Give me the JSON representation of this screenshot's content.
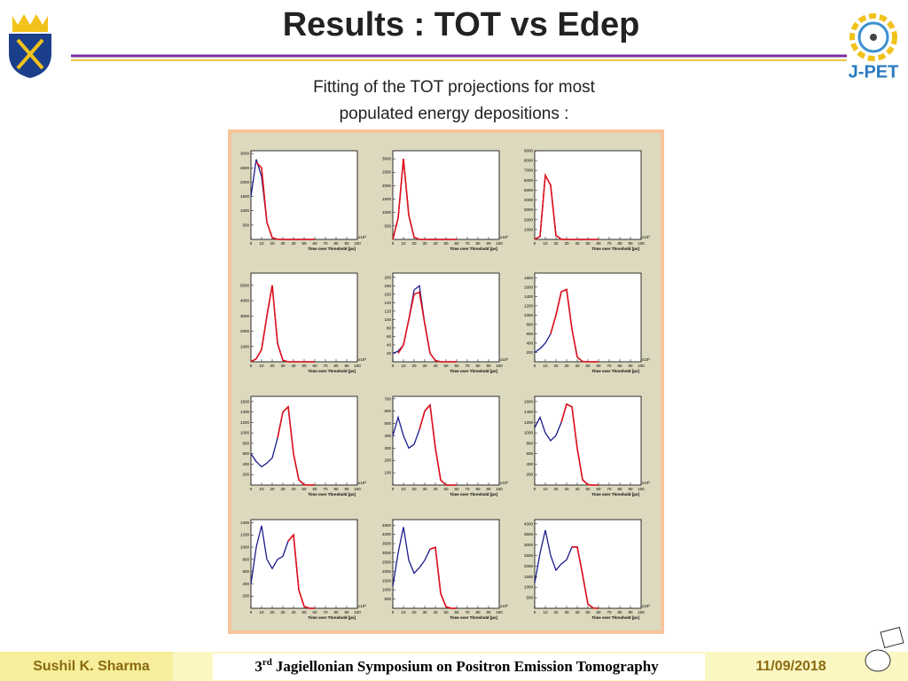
{
  "header": {
    "title": "Results :  TOT vs Edep",
    "subtitle_line1": "Fitting of the TOT projections for most",
    "subtitle_line2": "populated energy depositions :"
  },
  "logo_text": "J-PET",
  "footer": {
    "author": "Sushil K. Sharma",
    "event_number": "3",
    "event_suffix": "rd",
    "event": "Jagiellonian Symposium on Positron Emission Tomography",
    "date": "11/09/2018"
  },
  "chart_data": [
    {
      "type": "line",
      "xlabel": "Time over Threshold [ps]",
      "x_multiplier": "x10³",
      "x": [
        0,
        5,
        10,
        15,
        20,
        25,
        30,
        35,
        40,
        45,
        50,
        55,
        60
      ],
      "xlim": [
        0,
        100
      ],
      "xticks": [
        0,
        10,
        20,
        30,
        40,
        50,
        60,
        70,
        80,
        90,
        100
      ],
      "ylim": [
        0,
        3100
      ],
      "yticks": [
        500,
        1000,
        1500,
        2000,
        2500,
        3000
      ],
      "series": [
        {
          "color": "#1a1a8c",
          "values": [
            1500,
            2800,
            2200,
            600,
            60,
            5,
            0,
            0,
            0,
            0,
            0,
            0,
            0
          ]
        },
        {
          "color": "#e0101a",
          "values": [
            null,
            2700,
            2500,
            600,
            60,
            5,
            0,
            0,
            0,
            0,
            0,
            0,
            0
          ]
        }
      ]
    },
    {
      "type": "line",
      "xlabel": "Time over Threshold [ps]",
      "x_multiplier": "x10³",
      "x": [
        0,
        5,
        10,
        15,
        20,
        25,
        30,
        35,
        40,
        45,
        50,
        55,
        60
      ],
      "xlim": [
        0,
        100
      ],
      "xticks": [
        0,
        10,
        20,
        30,
        40,
        50,
        60,
        70,
        80,
        90,
        100
      ],
      "ylim": [
        0,
        3300
      ],
      "yticks": [
        500,
        1000,
        1500,
        2000,
        2500,
        3000
      ],
      "series": [
        {
          "color": "#1a1a8c",
          "values": [
            0,
            800,
            3000,
            900,
            80,
            0,
            0,
            0,
            0,
            0,
            0,
            0,
            0
          ]
        },
        {
          "color": "#e0101a",
          "values": [
            0,
            800,
            3000,
            900,
            80,
            0,
            0,
            0,
            0,
            0,
            0,
            0,
            0
          ]
        }
      ]
    },
    {
      "type": "line",
      "xlabel": "Time over Threshold [ps]",
      "x_multiplier": "x10³",
      "x": [
        0,
        5,
        10,
        15,
        20,
        25,
        30,
        35,
        40,
        45,
        50,
        55,
        60
      ],
      "xlim": [
        0,
        100
      ],
      "xticks": [
        0,
        10,
        20,
        30,
        40,
        50,
        60,
        70,
        80,
        90,
        100
      ],
      "ylim": [
        0,
        9000
      ],
      "yticks": [
        1000,
        2000,
        3000,
        4000,
        5000,
        6000,
        7000,
        8000,
        9000
      ],
      "series": [
        {
          "color": "#1a1a8c",
          "values": [
            0,
            300,
            6500,
            5500,
            400,
            20,
            0,
            0,
            0,
            0,
            0,
            0,
            0
          ]
        },
        {
          "color": "#e0101a",
          "values": [
            0,
            300,
            6500,
            5500,
            400,
            20,
            0,
            0,
            0,
            0,
            0,
            0,
            0
          ]
        }
      ]
    },
    {
      "type": "line",
      "xlabel": "Time over Threshold [ps]",
      "x_multiplier": "x10³",
      "x": [
        0,
        5,
        10,
        15,
        20,
        25,
        30,
        35,
        40,
        45,
        50,
        55,
        60
      ],
      "xlim": [
        0,
        100
      ],
      "xticks": [
        0,
        10,
        20,
        30,
        40,
        50,
        60,
        70,
        80,
        90,
        100
      ],
      "ylim": [
        0,
        5800
      ],
      "yticks": [
        1000,
        2000,
        3000,
        4000,
        5000
      ],
      "series": [
        {
          "color": "#1a1a8c",
          "values": [
            0,
            200,
            800,
            3000,
            5000,
            1200,
            100,
            0,
            0,
            0,
            0,
            0,
            0
          ]
        },
        {
          "color": "#e0101a",
          "values": [
            0,
            200,
            800,
            3000,
            5000,
            1200,
            100,
            0,
            0,
            0,
            0,
            0,
            0
          ]
        }
      ]
    },
    {
      "type": "line",
      "xlabel": "Time over Threshold [ps]",
      "x_multiplier": "x10³",
      "x": [
        0,
        5,
        10,
        15,
        20,
        25,
        30,
        35,
        40,
        45,
        50,
        55,
        60
      ],
      "xlim": [
        0,
        100
      ],
      "xticks": [
        0,
        10,
        20,
        30,
        40,
        50,
        60,
        70,
        80,
        90,
        100
      ],
      "ylim": [
        0,
        210
      ],
      "yticks": [
        20,
        40,
        60,
        80,
        100,
        120,
        140,
        160,
        180,
        200
      ],
      "series": [
        {
          "color": "#1a1a8c",
          "values": [
            20,
            25,
            40,
            100,
            170,
            180,
            90,
            20,
            3,
            0,
            0,
            0,
            0
          ]
        },
        {
          "color": "#e0101a",
          "values": [
            null,
            20,
            40,
            100,
            160,
            165,
            90,
            20,
            3,
            0,
            0,
            0,
            0
          ]
        }
      ]
    },
    {
      "type": "line",
      "xlabel": "Time over Threshold [ps]",
      "x_multiplier": "x10³",
      "x": [
        0,
        5,
        10,
        15,
        20,
        25,
        30,
        35,
        40,
        45,
        50,
        55,
        60
      ],
      "xlim": [
        0,
        100
      ],
      "xticks": [
        0,
        10,
        20,
        30,
        40,
        50,
        60,
        70,
        80,
        90,
        100
      ],
      "ylim": [
        0,
        1900
      ],
      "yticks": [
        200,
        400,
        600,
        800,
        1000,
        1200,
        1400,
        1600,
        1800
      ],
      "series": [
        {
          "color": "#1a1a8c",
          "values": [
            200,
            280,
            400,
            600,
            1000,
            1500,
            1550,
            700,
            100,
            5,
            0,
            0,
            0
          ]
        },
        {
          "color": "#e0101a",
          "values": [
            null,
            null,
            null,
            600,
            1000,
            1500,
            1550,
            700,
            100,
            5,
            0,
            0,
            0
          ]
        }
      ]
    },
    {
      "type": "line",
      "xlabel": "Time over Threshold [ps]",
      "x_multiplier": "x10³",
      "x": [
        0,
        5,
        10,
        15,
        20,
        25,
        30,
        35,
        40,
        45,
        50,
        55,
        60
      ],
      "xlim": [
        0,
        100
      ],
      "xticks": [
        0,
        10,
        20,
        30,
        40,
        50,
        60,
        70,
        80,
        90,
        100
      ],
      "ylim": [
        0,
        1700
      ],
      "yticks": [
        200,
        400,
        600,
        800,
        1000,
        1200,
        1400,
        1600
      ],
      "series": [
        {
          "color": "#1a1a8c",
          "values": [
            600,
            450,
            350,
            420,
            520,
            900,
            1400,
            1500,
            600,
            100,
            5,
            0,
            0
          ]
        },
        {
          "color": "#e0101a",
          "values": [
            null,
            null,
            null,
            null,
            null,
            900,
            1400,
            1500,
            600,
            100,
            5,
            0,
            0
          ]
        }
      ]
    },
    {
      "type": "line",
      "xlabel": "Time over Threshold [ps]",
      "x_multiplier": "x10³",
      "x": [
        0,
        5,
        10,
        15,
        20,
        25,
        30,
        35,
        40,
        45,
        50,
        55,
        60
      ],
      "xlim": [
        0,
        100
      ],
      "xticks": [
        0,
        10,
        20,
        30,
        40,
        50,
        60,
        70,
        80,
        90,
        100
      ],
      "ylim": [
        0,
        720
      ],
      "yticks": [
        100,
        200,
        300,
        400,
        500,
        600,
        700
      ],
      "series": [
        {
          "color": "#1a1a8c",
          "values": [
            400,
            550,
            400,
            300,
            330,
            450,
            600,
            650,
            300,
            40,
            0,
            0,
            0
          ]
        },
        {
          "color": "#e0101a",
          "values": [
            null,
            null,
            null,
            null,
            null,
            450,
            600,
            650,
            300,
            40,
            0,
            0,
            0
          ]
        }
      ]
    },
    {
      "type": "line",
      "xlabel": "Time over Threshold [ps]",
      "x_multiplier": "x10³",
      "x": [
        0,
        5,
        10,
        15,
        20,
        25,
        30,
        35,
        40,
        45,
        50,
        55,
        60
      ],
      "xlim": [
        0,
        100
      ],
      "xticks": [
        0,
        10,
        20,
        30,
        40,
        50,
        60,
        70,
        80,
        90,
        100
      ],
      "ylim": [
        0,
        1700
      ],
      "yticks": [
        200,
        400,
        600,
        800,
        1000,
        1200,
        1400,
        1600
      ],
      "series": [
        {
          "color": "#1a1a8c",
          "values": [
            1100,
            1300,
            1000,
            850,
            950,
            1200,
            1550,
            1500,
            700,
            100,
            5,
            0,
            0
          ]
        },
        {
          "color": "#e0101a",
          "values": [
            null,
            null,
            null,
            null,
            null,
            1200,
            1550,
            1500,
            700,
            100,
            5,
            0,
            0
          ]
        }
      ]
    },
    {
      "type": "line",
      "xlabel": "Time over Threshold [ps]",
      "x_multiplier": "x10³",
      "x": [
        0,
        5,
        10,
        15,
        20,
        25,
        30,
        35,
        40,
        45,
        50,
        55,
        60
      ],
      "xlim": [
        0,
        100
      ],
      "xticks": [
        0,
        10,
        20,
        30,
        40,
        50,
        60,
        70,
        80,
        90,
        100
      ],
      "ylim": [
        0,
        1450
      ],
      "yticks": [
        200,
        400,
        600,
        800,
        1000,
        1200,
        1400
      ],
      "series": [
        {
          "color": "#1a1a8c",
          "values": [
            400,
            1000,
            1350,
            800,
            650,
            800,
            850,
            1100,
            1200,
            300,
            30,
            0,
            0
          ]
        },
        {
          "color": "#e0101a",
          "values": [
            null,
            null,
            null,
            null,
            null,
            null,
            null,
            1100,
            1200,
            300,
            30,
            0,
            0
          ]
        }
      ]
    },
    {
      "type": "line",
      "xlabel": "Time over Threshold [ps]",
      "x_multiplier": "x10³",
      "x": [
        0,
        5,
        10,
        15,
        20,
        25,
        30,
        35,
        40,
        45,
        50,
        55,
        60
      ],
      "xlim": [
        0,
        100
      ],
      "xticks": [
        0,
        10,
        20,
        30,
        40,
        50,
        60,
        70,
        80,
        90,
        100
      ],
      "ylim": [
        0,
        4800
      ],
      "yticks": [
        500,
        1000,
        1500,
        2000,
        2500,
        3000,
        3500,
        4000,
        4500
      ],
      "series": [
        {
          "color": "#1a1a8c",
          "values": [
            1200,
            3000,
            4400,
            2600,
            1900,
            2200,
            2600,
            3200,
            3300,
            800,
            80,
            0,
            0
          ]
        },
        {
          "color": "#e0101a",
          "values": [
            null,
            null,
            null,
            null,
            null,
            null,
            null,
            3200,
            3300,
            800,
            80,
            0,
            0
          ]
        }
      ]
    },
    {
      "type": "line",
      "xlabel": "Time over Threshold [ps]",
      "x_multiplier": "x10³",
      "x": [
        0,
        5,
        10,
        15,
        20,
        25,
        30,
        35,
        40,
        45,
        50,
        55,
        60
      ],
      "xlim": [
        0,
        100
      ],
      "xticks": [
        0,
        10,
        20,
        30,
        40,
        50,
        60,
        70,
        80,
        90,
        100
      ],
      "ylim": [
        0,
        4200
      ],
      "yticks": [
        500,
        1000,
        1500,
        2000,
        2500,
        3000,
        3500,
        4000
      ],
      "series": [
        {
          "color": "#1a1a8c",
          "values": [
            1200,
            2600,
            3700,
            2500,
            1800,
            2100,
            2300,
            2900,
            2900,
            1600,
            200,
            10,
            0
          ]
        },
        {
          "color": "#e0101a",
          "values": [
            null,
            null,
            null,
            null,
            null,
            null,
            null,
            2900,
            2900,
            1600,
            200,
            10,
            0
          ]
        }
      ]
    }
  ]
}
